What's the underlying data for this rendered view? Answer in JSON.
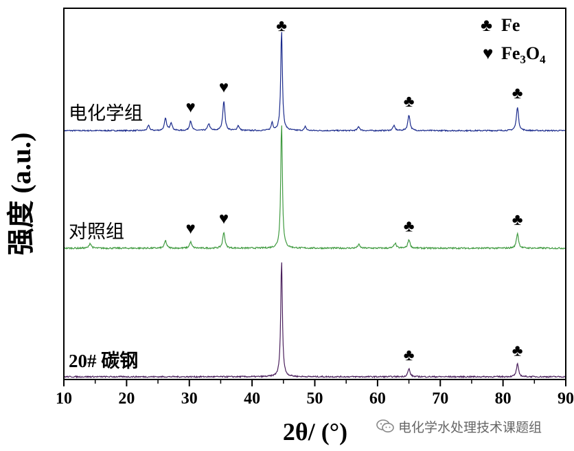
{
  "chart_data": {
    "type": "line",
    "xlabel": "2θ/ (°)",
    "ylabel": "强度 (a.u.)",
    "xlim": [
      10,
      90
    ],
    "x_ticks": [
      "10",
      "20",
      "30",
      "40",
      "50",
      "60",
      "70",
      "80",
      "90"
    ],
    "grid": false,
    "legend_position": "top-right",
    "legend": [
      {
        "symbol": "♣",
        "label_main": "Fe",
        "label_sub": ""
      },
      {
        "symbol": "♥",
        "label_main": "Fe",
        "sub1": "3",
        "mid": "O",
        "sub2": "4"
      }
    ],
    "series": [
      {
        "name": "电化学组",
        "color": "#1a2a8c",
        "peaks": [
          [
            23.5,
            0.05
          ],
          [
            26.2,
            0.12
          ],
          [
            27.1,
            0.08
          ],
          [
            30.2,
            0.1
          ],
          [
            33.1,
            0.07
          ],
          [
            35.5,
            0.3
          ],
          [
            37.8,
            0.05
          ],
          [
            43.2,
            0.08
          ],
          [
            44.7,
            1.0
          ],
          [
            48.5,
            0.04
          ],
          [
            57.0,
            0.04
          ],
          [
            62.6,
            0.05
          ],
          [
            65.0,
            0.16
          ],
          [
            82.3,
            0.24
          ]
        ],
        "markers": [
          {
            "x": 30.2,
            "symbol": "♥"
          },
          {
            "x": 35.5,
            "symbol": "♥"
          },
          {
            "x": 44.7,
            "symbol": "♣"
          },
          {
            "x": 65.0,
            "symbol": "♣"
          },
          {
            "x": 82.3,
            "symbol": "♣"
          }
        ]
      },
      {
        "name": "对照组",
        "color": "#3f9a3f",
        "peaks": [
          [
            14.2,
            0.04
          ],
          [
            26.2,
            0.06
          ],
          [
            30.2,
            0.05
          ],
          [
            35.5,
            0.13
          ],
          [
            44.7,
            1.0
          ],
          [
            57.0,
            0.03
          ],
          [
            62.8,
            0.04
          ],
          [
            65.0,
            0.07
          ],
          [
            82.3,
            0.12
          ]
        ],
        "markers": [
          {
            "x": 30.2,
            "symbol": "♥"
          },
          {
            "x": 35.5,
            "symbol": "♥"
          },
          {
            "x": 65.0,
            "symbol": "♣"
          },
          {
            "x": 82.3,
            "symbol": "♣"
          }
        ]
      },
      {
        "name": "20# 碳钢",
        "color": "#4a1f5c",
        "peaks": [
          [
            44.7,
            1.0
          ],
          [
            65.0,
            0.07
          ],
          [
            82.3,
            0.11
          ]
        ],
        "markers": [
          {
            "x": 65.0,
            "symbol": "♣"
          },
          {
            "x": 82.3,
            "symbol": "♣"
          }
        ]
      }
    ]
  },
  "watermark": {
    "icon": "wechat-icon",
    "text": "电化学水处理技术课题组"
  }
}
